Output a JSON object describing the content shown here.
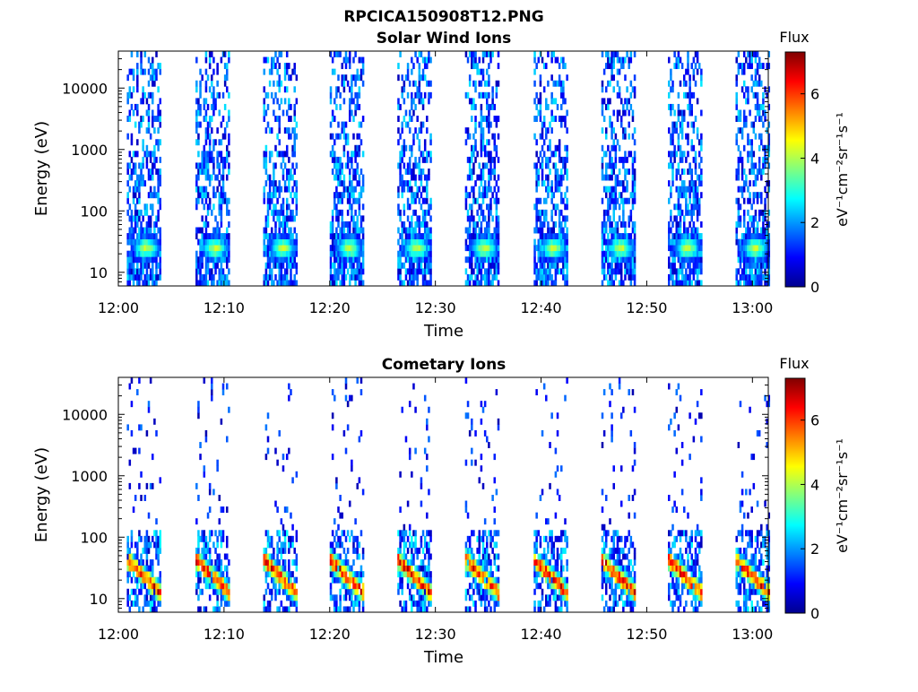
{
  "chart_data": {
    "type": "heatmap",
    "title": "RPCICA150908T12.PNG",
    "xlabel": "Time",
    "ylabel": "Energy (eV)",
    "x_tick_labels": [
      "12:00",
      "12:10",
      "12:20",
      "12:30",
      "12:40",
      "12:50",
      "13:00"
    ],
    "x_tick_minutes": [
      0,
      10,
      20,
      30,
      40,
      50,
      60
    ],
    "xlim_minutes": [
      0,
      61.5
    ],
    "y_scale": "log",
    "ylim": [
      6,
      40000
    ],
    "y_tick_values": [
      10,
      100,
      1000,
      10000
    ],
    "y_tick_labels": [
      "10",
      "100",
      "1000",
      "10000"
    ],
    "colorbar": {
      "title": "Flux",
      "unit_label": "eV⁻¹cm⁻²sr⁻¹s⁻¹",
      "range": [
        0,
        7.3
      ],
      "tick_values": [
        0,
        2,
        4,
        6
      ],
      "tick_labels": [
        "0",
        "2",
        "4",
        "6"
      ],
      "colormap": "jet"
    },
    "panels": [
      {
        "title": "Solar Wind Ions",
        "sweep_start_minutes": [
          0.8,
          7.3,
          13.7,
          20.0,
          26.4,
          32.8,
          39.3,
          45.7,
          52.0,
          58.4
        ],
        "sweep_duration_minutes": 3.2,
        "peak_energy_ev": 25,
        "peak_flux": 3.8
      },
      {
        "title": "Cometary Ions",
        "sweep_start_minutes": [
          0.8,
          7.3,
          13.7,
          20.0,
          26.4,
          32.8,
          39.3,
          45.7,
          52.0,
          58.4
        ],
        "sweep_duration_minutes": 3.2,
        "peak_energy_ev": 15,
        "peak_flux": 6.6
      }
    ]
  }
}
